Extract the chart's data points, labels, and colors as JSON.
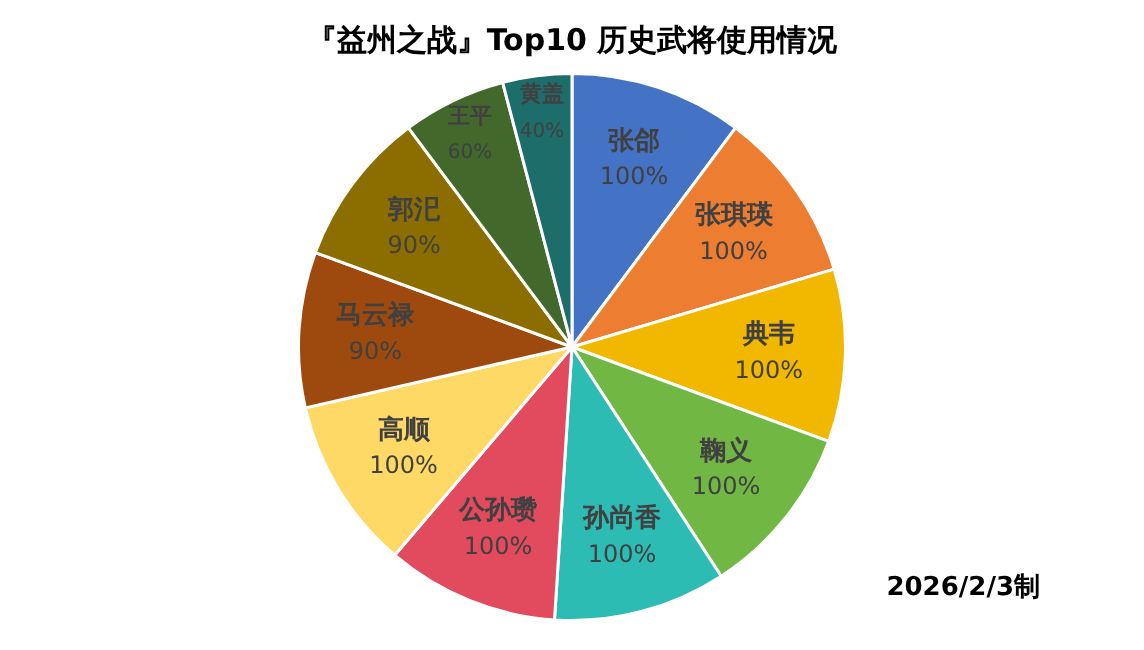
{
  "chart_data": {
    "type": "pie",
    "title": "『益州之战』Top10 历史武将使用情况",
    "categories": [
      "张郃",
      "张琪瑛",
      "典韦",
      "鞠义",
      "孙尚香",
      "公孙瓒",
      "高顺",
      "马云禄",
      "郭汜",
      "王平",
      "黄盖"
    ],
    "values": [
      100,
      100,
      100,
      100,
      100,
      100,
      100,
      90,
      90,
      60,
      40
    ],
    "value_labels": [
      "100%",
      "100%",
      "100%",
      "100%",
      "100%",
      "100%",
      "100%",
      "90%",
      "90%",
      "60%",
      "40%"
    ],
    "colors": [
      "#4472c4",
      "#ed7d31",
      "#f2b800",
      "#70b843",
      "#2cbcb4",
      "#e24a5e",
      "#ffd966",
      "#9e4a0e",
      "#8c6d00",
      "#43682b",
      "#1d6e6a"
    ],
    "annotations": [
      "2026/2/3制"
    ],
    "legend": false
  }
}
